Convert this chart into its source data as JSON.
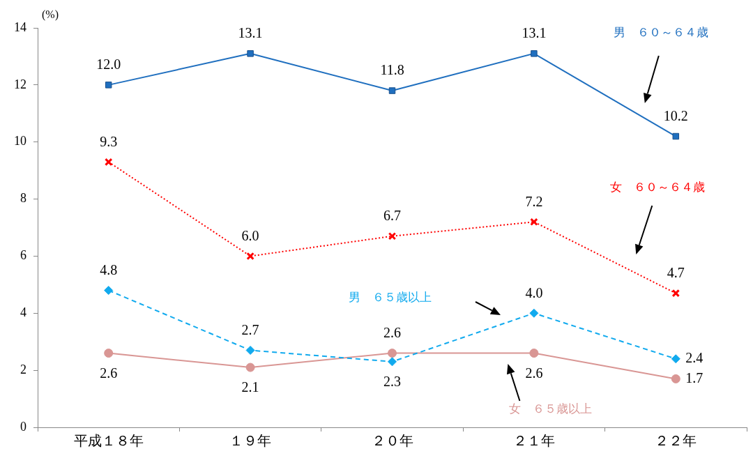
{
  "chart_data": {
    "type": "line",
    "ylabel": "(%)",
    "categories": [
      "平成１８年",
      "１９年",
      "２０年",
      "２１年",
      "２２年"
    ],
    "ylim": [
      0,
      14
    ],
    "yticks": [
      0,
      2,
      4,
      6,
      8,
      10,
      12,
      14
    ],
    "grid": false,
    "legend": false,
    "series": [
      {
        "name": "男　６０～６４歳",
        "color": "#1f6fbf",
        "marker": "square",
        "line_style": "solid",
        "values": [
          12.0,
          13.1,
          11.8,
          13.1,
          10.2
        ],
        "value_labels": [
          "12.0",
          "13.1",
          "11.8",
          "13.1",
          "10.2"
        ]
      },
      {
        "name": "女　６０～６４歳",
        "color": "#ff0000",
        "marker": "cross",
        "line_style": "dotted",
        "values": [
          9.3,
          6.0,
          6.7,
          7.2,
          4.7
        ],
        "value_labels": [
          "9.3",
          "6.0",
          "6.7",
          "7.2",
          "4.7"
        ]
      },
      {
        "name": "男　６５歳以上",
        "color": "#11aaee",
        "marker": "diamond",
        "line_style": "dashed",
        "values": [
          4.8,
          2.7,
          2.3,
          4.0,
          2.4
        ],
        "value_labels": [
          "4.8",
          "2.7",
          "2.3",
          "4.0",
          "2.4"
        ]
      },
      {
        "name": "女　６５歳以上",
        "color": "#d99694",
        "marker": "circle",
        "line_style": "solid",
        "values": [
          2.6,
          2.1,
          2.6,
          2.6,
          1.7
        ],
        "value_labels": [
          "2.6",
          "2.1",
          "2.6",
          "2.6",
          "1.7"
        ]
      }
    ]
  }
}
